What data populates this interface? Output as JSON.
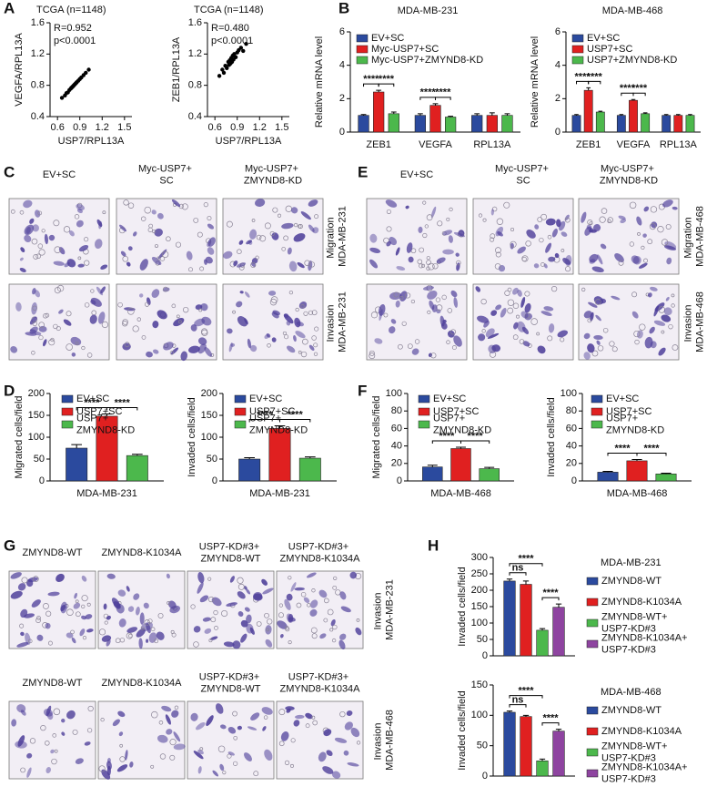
{
  "panel_letters": [
    "A",
    "B",
    "C",
    "D",
    "E",
    "F",
    "G",
    "H"
  ],
  "chart_data": [
    {
      "type": "scatter",
      "title": "TCGA (n=1148)",
      "annotations": [
        "R=0.952",
        "p<0.0001"
      ],
      "xlabel": "USP7/RPL13A",
      "ylabel": "VEGFA/RPL13A",
      "color": "#000000",
      "xlim": [
        0.5,
        1.6
      ],
      "ylim": [
        0.4,
        1.6
      ],
      "xticks": [
        0.6,
        0.9,
        1.2,
        1.5
      ],
      "yticks": [
        0.4,
        0.8,
        1.2,
        1.6
      ],
      "x": [
        0.66,
        0.7,
        0.72,
        0.74,
        0.76,
        0.78,
        0.79,
        0.8,
        0.81,
        0.82,
        0.83,
        0.84,
        0.85,
        0.86,
        0.88,
        0.9,
        0.92,
        0.95,
        0.98,
        1.02
      ],
      "y": [
        0.64,
        0.67,
        0.7,
        0.71,
        0.74,
        0.76,
        0.77,
        0.78,
        0.79,
        0.8,
        0.81,
        0.82,
        0.83,
        0.84,
        0.86,
        0.88,
        0.9,
        0.93,
        0.96,
        1.0
      ]
    },
    {
      "type": "scatter",
      "title": "TCGA (n=1148)",
      "annotations": [
        "R=0.480",
        "p<0.0001"
      ],
      "xlabel": "USP7/RPL13A",
      "ylabel": "ZEB1/RPL13A",
      "color": "#000000",
      "xlim": [
        0.5,
        1.6
      ],
      "ylim": [
        0.4,
        1.6
      ],
      "xticks": [
        0.6,
        0.9,
        1.2,
        1.5
      ],
      "yticks": [
        0.4,
        0.8,
        1.2,
        1.6
      ],
      "x": [
        0.66,
        0.7,
        0.72,
        0.74,
        0.76,
        0.78,
        0.79,
        0.8,
        0.81,
        0.82,
        0.83,
        0.84,
        0.85,
        0.86,
        0.88,
        0.9,
        0.92,
        0.95,
        0.98,
        1.02
      ],
      "y": [
        0.92,
        1.0,
        0.96,
        1.05,
        1.02,
        1.1,
        1.06,
        1.12,
        1.08,
        1.15,
        1.1,
        1.18,
        1.13,
        1.2,
        1.16,
        1.22,
        1.25,
        1.28,
        1.24,
        1.33
      ]
    },
    {
      "type": "bar",
      "title": "MDA-MB-231",
      "ylabel": "Relative mRNA level",
      "categories": [
        "ZEB1",
        "VEGFA",
        "RPL13A"
      ],
      "ylim": [
        0,
        6
      ],
      "yticks": [
        0,
        2,
        4,
        6
      ],
      "series": [
        {
          "name": "EV+SC",
          "color": "#2b4a9e",
          "values": [
            1.0,
            1.0,
            1.0
          ],
          "errors": [
            0.05,
            0.1,
            0.1
          ]
        },
        {
          "name": "Myc-USP7+SC",
          "color": "#e02020",
          "values": [
            2.4,
            1.6,
            1.0
          ],
          "errors": [
            0.1,
            0.1,
            0.15
          ]
        },
        {
          "name": "Myc-USP7+ZMYND8-KD",
          "color": "#4cb84c",
          "values": [
            1.1,
            0.9,
            1.0
          ],
          "errors": [
            0.1,
            0.05,
            0.1
          ]
        }
      ],
      "annotations": [
        {
          "label": "****",
          "category": 0,
          "between": [
            0,
            1
          ]
        },
        {
          "label": "****",
          "category": 0,
          "between": [
            1,
            2
          ]
        },
        {
          "label": "****",
          "category": 1,
          "between": [
            0,
            1
          ]
        },
        {
          "label": "****",
          "category": 1,
          "between": [
            1,
            2
          ]
        }
      ]
    },
    {
      "type": "bar",
      "title": "MDA-MB-468",
      "ylabel": "Relative mRNA level",
      "categories": [
        "ZEB1",
        "VEGFA",
        "RPL13A"
      ],
      "ylim": [
        0,
        6
      ],
      "yticks": [
        0,
        2,
        4,
        6
      ],
      "series": [
        {
          "name": "EV+SC",
          "color": "#2b4a9e",
          "values": [
            1.0,
            1.0,
            1.0
          ],
          "errors": [
            0.05,
            0.05,
            0.05
          ]
        },
        {
          "name": "USP7+SC",
          "color": "#e02020",
          "values": [
            2.5,
            1.9,
            1.0
          ],
          "errors": [
            0.15,
            0.05,
            0.05
          ]
        },
        {
          "name": "USP7+ZMYND8-KD",
          "color": "#4cb84c",
          "values": [
            1.2,
            1.1,
            1.0
          ],
          "errors": [
            0.05,
            0.05,
            0.05
          ]
        }
      ],
      "annotations": [
        {
          "label": "****",
          "category": 0,
          "between": [
            0,
            1
          ]
        },
        {
          "label": "****",
          "category": 0,
          "between": [
            1,
            2
          ]
        },
        {
          "label": "****",
          "category": 1,
          "between": [
            0,
            1
          ]
        },
        {
          "label": "****",
          "category": 1,
          "between": [
            1,
            2
          ]
        }
      ]
    },
    {
      "type": "bar",
      "ylabel": "Migrated cells/field",
      "categories": [
        "MDA-MB-231"
      ],
      "ylim": [
        0,
        200
      ],
      "yticks": [
        0,
        50,
        100,
        150,
        200
      ],
      "series": [
        {
          "name": "EV+SC",
          "color": "#2b4a9e",
          "values": [
            75
          ],
          "errors": [
            8
          ]
        },
        {
          "name": "USP7+SC",
          "color": "#e02020",
          "values": [
            148
          ],
          "errors": [
            5
          ]
        },
        {
          "name": "USP7+ ZMYND8-KD",
          "color": "#4cb84c",
          "values": [
            58
          ],
          "errors": [
            3
          ]
        }
      ],
      "annotations": [
        {
          "label": "****",
          "category": 0,
          "between": [
            0,
            1
          ]
        },
        {
          "label": "****",
          "category": 0,
          "between": [
            1,
            2
          ]
        }
      ]
    },
    {
      "type": "bar",
      "ylabel": "Invaded cells/field",
      "categories": [
        "MDA-MB-231"
      ],
      "ylim": [
        0,
        200
      ],
      "yticks": [
        0,
        50,
        100,
        150,
        200
      ],
      "series": [
        {
          "name": "EV+SC",
          "color": "#2b4a9e",
          "values": [
            50
          ],
          "errors": [
            3
          ]
        },
        {
          "name": "USP7+SC",
          "color": "#e02020",
          "values": [
            120
          ],
          "errors": [
            6
          ]
        },
        {
          "name": "USP7+ ZMYND8-KD",
          "color": "#4cb84c",
          "values": [
            52
          ],
          "errors": [
            3
          ]
        }
      ],
      "annotations": [
        {
          "label": "****",
          "category": 0,
          "between": [
            0,
            1
          ]
        },
        {
          "label": "****",
          "category": 0,
          "between": [
            1,
            2
          ]
        }
      ]
    },
    {
      "type": "bar",
      "ylabel": "Migrated cells/field",
      "categories": [
        "MDA-MB-468"
      ],
      "ylim": [
        0,
        100
      ],
      "yticks": [
        0,
        20,
        40,
        60,
        80,
        100
      ],
      "series": [
        {
          "name": "EV+SC",
          "color": "#2b4a9e",
          "values": [
            16
          ],
          "errors": [
            2
          ]
        },
        {
          "name": "USP7+SC",
          "color": "#e02020",
          "values": [
            37
          ],
          "errors": [
            1.5
          ]
        },
        {
          "name": "USP7+ ZMYND8-KD",
          "color": "#4cb84c",
          "values": [
            14
          ],
          "errors": [
            1.5
          ]
        }
      ],
      "annotations": [
        {
          "label": "****",
          "category": 0,
          "between": [
            0,
            1
          ]
        },
        {
          "label": "****",
          "category": 0,
          "between": [
            1,
            2
          ]
        }
      ]
    },
    {
      "type": "bar",
      "ylabel": "Invaded cells/field",
      "categories": [
        "MDA-MB-468"
      ],
      "ylim": [
        0,
        100
      ],
      "yticks": [
        0,
        20,
        40,
        60,
        80,
        100
      ],
      "series": [
        {
          "name": "EV+SC",
          "color": "#2b4a9e",
          "values": [
            10
          ],
          "errors": [
            1
          ]
        },
        {
          "name": "USP7+SC",
          "color": "#e02020",
          "values": [
            23
          ],
          "errors": [
            1.5
          ]
        },
        {
          "name": "USP7+ ZMYND8-KD",
          "color": "#4cb84c",
          "values": [
            8
          ],
          "errors": [
            0.8
          ]
        }
      ],
      "annotations": [
        {
          "label": "****",
          "category": 0,
          "between": [
            0,
            1
          ]
        },
        {
          "label": "****",
          "category": 0,
          "between": [
            1,
            2
          ]
        }
      ]
    },
    {
      "type": "bar",
      "title": "MDA-MB-231",
      "ylabel": "Invaded cells/field",
      "categories": [
        null
      ],
      "ylim": [
        0,
        300
      ],
      "yticks": [
        0,
        50,
        100,
        150,
        200,
        250,
        300
      ],
      "series": [
        {
          "name": "ZMYND8-WT",
          "color": "#2b4a9e",
          "values": [
            228
          ],
          "errors": [
            6
          ]
        },
        {
          "name": "ZMYND8-K1034A",
          "color": "#e02020",
          "values": [
            218
          ],
          "errors": [
            10
          ]
        },
        {
          "name": "ZMYND8-WT+ USP7-KD#3",
          "color": "#4cb84c",
          "values": [
            78
          ],
          "errors": [
            5
          ]
        },
        {
          "name": "ZMYND8-K1034A+ USP7-KD#3",
          "color": "#8e44a0",
          "values": [
            148
          ],
          "errors": [
            10
          ]
        }
      ],
      "annotations": [
        {
          "label": "ns",
          "category": 0,
          "between": [
            0,
            1
          ]
        },
        {
          "label": "****",
          "category": 0,
          "between": [
            0,
            2
          ]
        },
        {
          "label": "****",
          "category": 0,
          "between": [
            2,
            3
          ]
        }
      ]
    },
    {
      "type": "bar",
      "title": "MDA-MB-468",
      "ylabel": "Invaded cells/field",
      "categories": [
        null
      ],
      "ylim": [
        0,
        150
      ],
      "yticks": [
        0,
        50,
        100,
        150
      ],
      "series": [
        {
          "name": "ZMYND8-WT",
          "color": "#2b4a9e",
          "values": [
            105
          ],
          "errors": [
            2
          ]
        },
        {
          "name": "ZMYND8-K1034A",
          "color": "#e02020",
          "values": [
            98
          ],
          "errors": [
            2
          ]
        },
        {
          "name": "ZMYND8-WT+ USP7-KD#3",
          "color": "#4cb84c",
          "values": [
            25
          ],
          "errors": [
            3
          ]
        },
        {
          "name": "ZMYND8-K1034A+ USP7-KD#3",
          "color": "#8e44a0",
          "values": [
            74
          ],
          "errors": [
            3
          ]
        }
      ],
      "annotations": [
        {
          "label": "ns",
          "category": 0,
          "between": [
            0,
            1
          ]
        },
        {
          "label": "****",
          "category": 0,
          "between": [
            0,
            2
          ]
        },
        {
          "label": "****",
          "category": 0,
          "between": [
            2,
            3
          ]
        }
      ]
    }
  ],
  "image_panels": [
    {
      "column_headers": [
        [
          "EV+SC",
          "Myc-USP7+ SC",
          "Myc-USP7+ ZMYND8-KD"
        ]
      ],
      "row_labels": [
        "Migration MDA-MB-231",
        "Invasion MDA-MB-231"
      ]
    },
    {
      "column_headers": [
        [
          "EV+SC",
          "Myc-USP7+ SC",
          "Myc-USP7+ ZMYND8-KD"
        ]
      ],
      "row_labels": [
        "Migration MDA-MB-468",
        "Invasion MDA-MB-468"
      ]
    },
    {
      "column_headers": [
        [
          "ZMYND8-WT",
          "ZMYND8-K1034A",
          "USP7-KD#3+ ZMYND8-WT",
          "USP7-KD#3+ ZMYND8-K1034A"
        ],
        [
          "ZMYND8-WT",
          "ZMYND8-K1034A",
          "USP7-KD#3+ ZMYND8-WT",
          "USP7-KD#3+ ZMYND8-K1034A"
        ]
      ],
      "row_labels": [
        "Invasion MDA-MB-231",
        "Invasion MDA-MB-468"
      ]
    }
  ]
}
